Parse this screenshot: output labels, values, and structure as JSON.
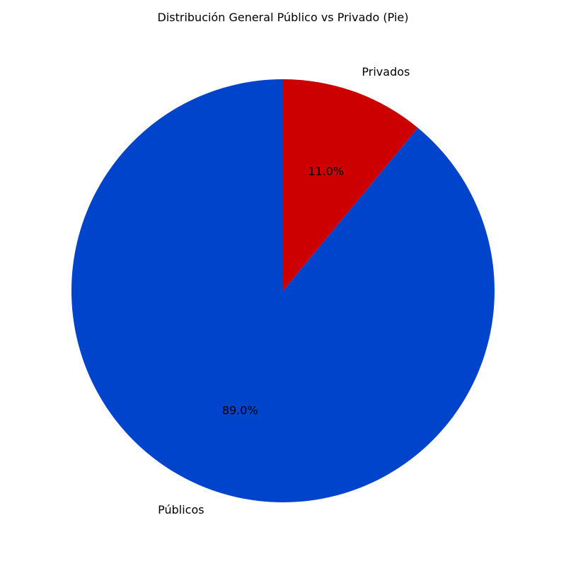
{
  "chart_data": {
    "type": "pie",
    "title": "Distribución General Público vs Privado (Pie)",
    "start_angle_deg": 90,
    "direction": "clockwise",
    "slices": [
      {
        "label": "Privados",
        "value": 11.0,
        "pct_label": "11.0%",
        "color": "#cc0000"
      },
      {
        "label": "Públicos",
        "value": 89.0,
        "pct_label": "89.0%",
        "color": "#0044cc"
      }
    ]
  }
}
